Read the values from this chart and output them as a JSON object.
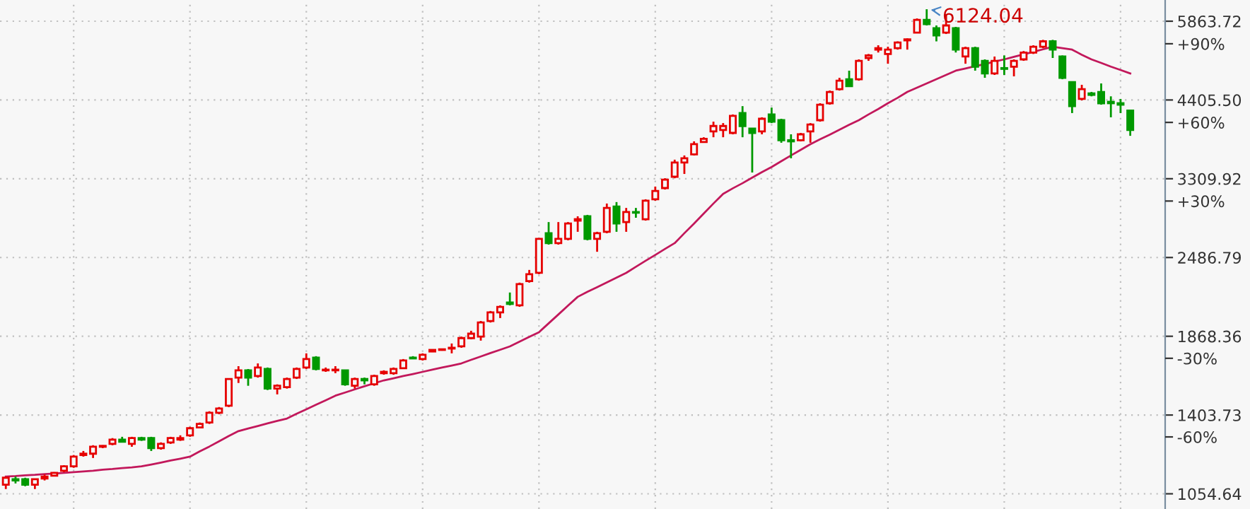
{
  "chart_data": {
    "type": "candlestick",
    "categories": [
      null,
      null,
      null,
      null,
      null,
      null,
      null,
      null,
      null,
      null,
      null,
      null,
      null,
      null,
      null,
      null,
      null,
      null,
      null,
      null,
      null,
      null,
      null,
      null,
      null,
      null,
      null,
      null,
      null,
      null,
      null,
      null,
      null,
      null,
      null,
      null,
      null,
      null,
      null,
      null,
      null,
      null,
      null,
      null,
      null,
      null,
      null,
      null,
      null,
      null,
      null,
      null,
      null,
      null,
      null,
      null,
      null,
      null,
      null,
      null,
      null,
      null,
      null,
      null,
      null,
      null,
      null,
      null,
      null,
      null,
      null,
      null,
      null,
      null,
      null,
      null,
      null,
      null,
      null,
      null,
      null,
      null,
      null,
      null,
      null,
      null,
      null,
      null,
      null,
      null,
      null,
      null,
      null,
      null,
      null,
      null,
      null,
      null,
      null,
      null,
      null,
      null,
      null,
      null,
      null,
      null,
      null,
      null,
      null,
      null,
      null,
      null,
      null,
      null,
      null,
      null,
      null
    ],
    "ohlc": [
      [
        1090,
        1118,
        1073,
        1118
      ],
      [
        1112,
        1123,
        1095,
        1107
      ],
      [
        1112,
        1118,
        1084,
        1090
      ],
      [
        1090,
        1112,
        1073,
        1112
      ],
      [
        1115,
        1132,
        1107,
        1123
      ],
      [
        1126,
        1141,
        1123,
        1138
      ],
      [
        1147,
        1170,
        1141,
        1165
      ],
      [
        1165,
        1214,
        1159,
        1207
      ],
      [
        1214,
        1232,
        1207,
        1220
      ],
      [
        1220,
        1258,
        1201,
        1251
      ],
      [
        1251,
        1258,
        1245,
        1255
      ],
      [
        1264,
        1291,
        1258,
        1284
      ],
      [
        1284,
        1297,
        1271,
        1274
      ],
      [
        1264,
        1297,
        1251,
        1291
      ],
      [
        1291,
        1297,
        1278,
        1284
      ],
      [
        1291,
        1297,
        1232,
        1245
      ],
      [
        1245,
        1271,
        1238,
        1264
      ],
      [
        1271,
        1297,
        1264,
        1291
      ],
      [
        1284,
        1304,
        1278,
        1291
      ],
      [
        1304,
        1345,
        1297,
        1338
      ],
      [
        1342,
        1366,
        1338,
        1359
      ],
      [
        1366,
        1423,
        1359,
        1415
      ],
      [
        1415,
        1445,
        1408,
        1437
      ],
      [
        1452,
        1600,
        1445,
        1600
      ],
      [
        1608,
        1676,
        1577,
        1651
      ],
      [
        1651,
        1659,
        1561,
        1608
      ],
      [
        1617,
        1693,
        1608,
        1668
      ],
      [
        1659,
        1668,
        1537,
        1545
      ],
      [
        1545,
        1569,
        1513,
        1561
      ],
      [
        1553,
        1608,
        1545,
        1600
      ],
      [
        1608,
        1668,
        1600,
        1659
      ],
      [
        1668,
        1756,
        1659,
        1720
      ],
      [
        1729,
        1738,
        1651,
        1659
      ],
      [
        1651,
        1668,
        1642,
        1655
      ],
      [
        1651,
        1676,
        1634,
        1655
      ],
      [
        1651,
        1651,
        1561,
        1569
      ],
      [
        1561,
        1608,
        1545,
        1600
      ],
      [
        1600,
        1608,
        1569,
        1592
      ],
      [
        1569,
        1625,
        1561,
        1617
      ],
      [
        1634,
        1651,
        1625,
        1642
      ],
      [
        1634,
        1668,
        1625,
        1659
      ],
      [
        1664,
        1720,
        1659,
        1711
      ],
      [
        1729,
        1738,
        1720,
        1724
      ],
      [
        1720,
        1756,
        1711,
        1747
      ],
      [
        1768,
        1782,
        1764,
        1778
      ],
      [
        1778,
        1787,
        1773,
        1782
      ],
      [
        1787,
        1820,
        1756,
        1792
      ],
      [
        1801,
        1866,
        1792,
        1856
      ],
      [
        1856,
        1906,
        1848,
        1886
      ],
      [
        1866,
        1975,
        1839,
        1964
      ],
      [
        1975,
        2048,
        1964,
        2038
      ],
      [
        2038,
        2090,
        1996,
        2079
      ],
      [
        2112,
        2190,
        2090,
        2101
      ],
      [
        2090,
        2270,
        2079,
        2258
      ],
      [
        2282,
        2377,
        2270,
        2340
      ],
      [
        2352,
        2661,
        2340,
        2661
      ],
      [
        2716,
        2828,
        2606,
        2620
      ],
      [
        2620,
        2828,
        2606,
        2661
      ],
      [
        2661,
        2828,
        2647,
        2813
      ],
      [
        2843,
        2888,
        2730,
        2858
      ],
      [
        2888,
        2903,
        2647,
        2661
      ],
      [
        2661,
        2730,
        2539,
        2716
      ],
      [
        2730,
        3025,
        2716,
        2977
      ],
      [
        2993,
        3041,
        2730,
        2813
      ],
      [
        2828,
        2977,
        2730,
        2933
      ],
      [
        2933,
        2977,
        2873,
        2926
      ],
      [
        2858,
        3072,
        2843,
        3056
      ],
      [
        3072,
        3217,
        3056,
        3167
      ],
      [
        3200,
        3316,
        3183,
        3299
      ],
      [
        3334,
        3547,
        3316,
        3510
      ],
      [
        3510,
        3602,
        3368,
        3565
      ],
      [
        3616,
        3791,
        3602,
        3752
      ],
      [
        3781,
        3848,
        3772,
        3827
      ],
      [
        3930,
        4072,
        3848,
        4008
      ],
      [
        3950,
        4051,
        3848,
        4008
      ],
      [
        3909,
        4180,
        3889,
        4158
      ],
      [
        4201,
        4308,
        3848,
        4008
      ],
      [
        3971,
        3971,
        3386,
        3909
      ],
      [
        3930,
        4137,
        3889,
        4115
      ],
      [
        4180,
        4286,
        4051,
        4072
      ],
      [
        4094,
        4115,
        3772,
        3807
      ],
      [
        3807,
        3889,
        3565,
        3791
      ],
      [
        3807,
        3909,
        3791,
        3889
      ],
      [
        3930,
        4051,
        3772,
        4029
      ],
      [
        4094,
        4354,
        4072,
        4331
      ],
      [
        4354,
        4559,
        4331,
        4536
      ],
      [
        4583,
        4775,
        4559,
        4725
      ],
      [
        4750,
        4900,
        4631,
        4631
      ],
      [
        4750,
        5105,
        4725,
        5078
      ],
      [
        5131,
        5206,
        5078,
        5178
      ],
      [
        5289,
        5373,
        5234,
        5317
      ],
      [
        5206,
        5345,
        5025,
        5289
      ],
      [
        5317,
        5450,
        5289,
        5429
      ],
      [
        5470,
        5509,
        5289,
        5490
      ],
      [
        5627,
        5923,
        5627,
        5892
      ],
      [
        5892,
        6124.04,
        5774,
        5804
      ],
      [
        5715,
        5774,
        5450,
        5568
      ],
      [
        5627,
        6016,
        5598,
        5774
      ],
      [
        5715,
        5745,
        5234,
        5289
      ],
      [
        5158,
        5345,
        5025,
        5317
      ],
      [
        5317,
        5345,
        4900,
        4972
      ],
      [
        5078,
        5105,
        4775,
        4850
      ],
      [
        4850,
        5158,
        4825,
        5078
      ],
      [
        4946,
        5178,
        4825,
        4932
      ],
      [
        4972,
        5105,
        4800,
        5078
      ],
      [
        5105,
        5262,
        5078,
        5234
      ],
      [
        5234,
        5373,
        5206,
        5345
      ],
      [
        5345,
        5480,
        5317,
        5450
      ],
      [
        5450,
        5480,
        5131,
        5289
      ],
      [
        5158,
        5178,
        4750,
        4775
      ],
      [
        4700,
        4700,
        4201,
        4308
      ],
      [
        4422,
        4655,
        4399,
        4583
      ],
      [
        4512,
        4536,
        4464,
        4488
      ],
      [
        4536,
        4678,
        4331,
        4354
      ],
      [
        4376,
        4464,
        4137,
        4354
      ],
      [
        4354,
        4422,
        4201,
        4331
      ],
      [
        4240,
        4240,
        3868,
        3950
      ]
    ],
    "colors": [
      "#e60000",
      "#009900",
      "#009900",
      "#e60000",
      "#e60000",
      "#e60000",
      "#e60000",
      "#e60000",
      "#e60000",
      "#e60000",
      "#e60000",
      "#e60000",
      "#009900",
      "#e60000",
      "#009900",
      "#009900",
      "#e60000",
      "#e60000",
      "#e60000",
      "#e60000",
      "#e60000",
      "#e60000",
      "#e60000",
      "#e60000",
      "#e60000",
      "#009900",
      "#e60000",
      "#009900",
      "#e60000",
      "#e60000",
      "#e60000",
      "#e60000",
      "#009900",
      "#e60000",
      "#e60000",
      "#009900",
      "#e60000",
      "#009900",
      "#e60000",
      "#e60000",
      "#e60000",
      "#e60000",
      "#009900",
      "#e60000",
      "#e60000",
      "#e60000",
      "#e60000",
      "#e60000",
      "#e60000",
      "#e60000",
      "#e60000",
      "#e60000",
      "#009900",
      "#e60000",
      "#e60000",
      "#e60000",
      "#009900",
      "#e60000",
      "#e60000",
      "#e60000",
      "#009900",
      "#e60000",
      "#e60000",
      "#009900",
      "#e60000",
      "#009900",
      "#e60000",
      "#e60000",
      "#e60000",
      "#e60000",
      "#e60000",
      "#e60000",
      "#e60000",
      "#e60000",
      "#e60000",
      "#e60000",
      "#009900",
      "#009900",
      "#e60000",
      "#009900",
      "#009900",
      "#009900",
      "#e60000",
      "#e60000",
      "#e60000",
      "#e60000",
      "#e60000",
      "#009900",
      "#e60000",
      "#e60000",
      "#e60000",
      "#e60000",
      "#e60000",
      "#e60000",
      "#e60000",
      "#009900",
      "#009900",
      "#e60000",
      "#009900",
      "#e60000",
      "#009900",
      "#009900",
      "#e60000",
      "#009900",
      "#e60000",
      "#e60000",
      "#e60000",
      "#e60000",
      "#009900",
      "#009900",
      "#009900",
      "#e60000",
      "#009900",
      "#009900",
      "#009900",
      "#009900",
      "#009900"
    ],
    "series": [
      {
        "type": "line",
        "color": "#c2185b",
        "values": [
          1123,
          1125,
          1128,
          1130,
          1133,
          1135,
          1138,
          1141,
          1144,
          1147,
          1151,
          1154,
          1158,
          1161,
          1165,
          1173,
          1181,
          1190,
          1198,
          1207,
          1230,
          1252,
          1276,
          1301,
          1324,
          1337,
          1349,
          1362,
          1374,
          1386,
          1410,
          1433,
          1457,
          1481,
          1506,
          1523,
          1541,
          1558,
          1575,
          1592,
          1604,
          1617,
          1629,
          1642,
          1655,
          1668,
          1680,
          1693,
          1715,
          1736,
          1758,
          1779,
          1801,
          1832,
          1864,
          1896,
          1958,
          2022,
          2089,
          2156,
          2196,
          2233,
          2272,
          2312,
          2352,
          2404,
          2457,
          2510,
          2565,
          2620,
          2716,
          2813,
          2918,
          3025,
          3133,
          3197,
          3257,
          3323,
          3390,
          3454,
          3528,
          3602,
          3675,
          3752,
          3819,
          3885,
          3954,
          4025,
          4094,
          4180,
          4263,
          4354,
          4440,
          4536,
          4607,
          4678,
          4750,
          4825,
          4900,
          4940,
          4980,
          5020,
          5063,
          5105,
          5153,
          5200,
          5245,
          5295,
          5345,
          5317,
          5289,
          5192,
          5105,
          5039,
          4972,
          4912,
          4850
        ]
      }
    ],
    "ylim": [
      998,
      6333
    ],
    "yticks": [
      5863.72,
      {
        "value": 4405.5,
        "label": "4405.50"
      },
      3309.92,
      2486.79,
      1868.36,
      1403.73,
      1054.64
    ],
    "y2lim": [
      -87.5,
      106.7
    ],
    "y2ticks": [
      {
        "value": 90,
        "label": "+90%"
      },
      {
        "value": 60,
        "label": "+60%"
      },
      {
        "value": 30,
        "label": "+30%"
      },
      {
        "value": -30,
        "label": "-30%"
      },
      {
        "value": -60,
        "label": "-60%"
      }
    ],
    "log": "y",
    "grid": true,
    "tick_labels": "y",
    "annotations": [
      "6124.04"
    ]
  }
}
